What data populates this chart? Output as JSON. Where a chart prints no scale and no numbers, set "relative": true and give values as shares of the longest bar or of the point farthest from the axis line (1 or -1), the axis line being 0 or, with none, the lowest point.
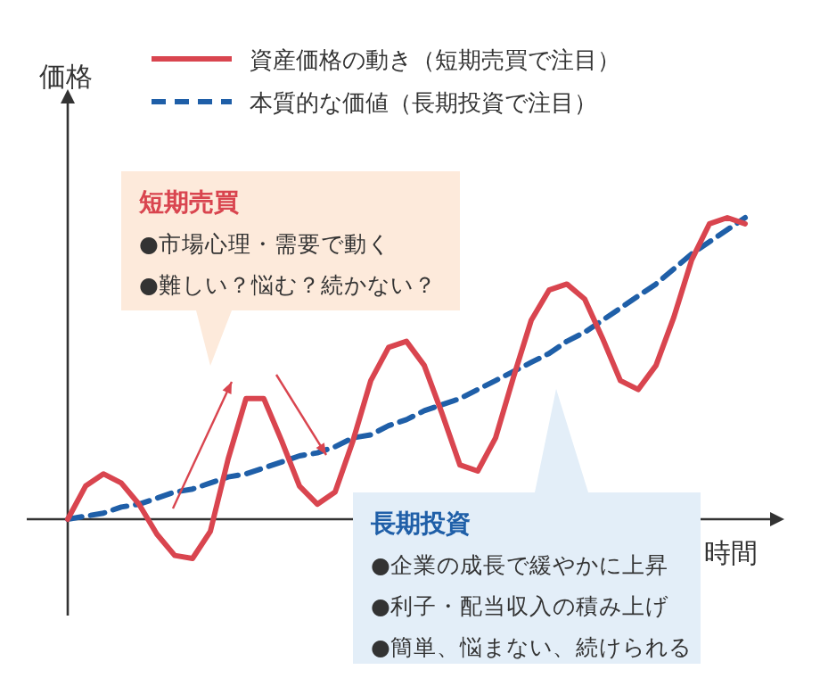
{
  "chart_data": {
    "type": "line",
    "relative": true,
    "xlabel": "時間",
    "ylabel": "価格",
    "legend": "top",
    "marker": "none",
    "categories": [
      null,
      null,
      null,
      null,
      null,
      null,
      null,
      null,
      null,
      null,
      null,
      null,
      null,
      null,
      null,
      null,
      null,
      null,
      null,
      null,
      null,
      null,
      null,
      null,
      null,
      null,
      null,
      null,
      null,
      null,
      null,
      null,
      null,
      null,
      null,
      null,
      null,
      null,
      null
    ],
    "series": [
      {
        "name": "資産価格の動き（短期売買で注目）",
        "color": "#d9454f",
        "line_style": "solid",
        "values": [
          0,
          0.11,
          0.15,
          0.12,
          0.05,
          -0.05,
          -0.12,
          -0.13,
          -0.04,
          0.2,
          0.4,
          0.4,
          0.26,
          0.11,
          0.05,
          0.09,
          0.26,
          0.46,
          0.57,
          0.59,
          0.51,
          0.35,
          0.18,
          0.16,
          0.27,
          0.47,
          0.66,
          0.76,
          0.78,
          0.73,
          0.6,
          0.46,
          0.43,
          0.51,
          0.67,
          0.86,
          0.98,
          1.0,
          0.98
        ]
      },
      {
        "name": "本質的な価値（長期投資で注目）",
        "color": "#1f5fa8",
        "line_style": "dashed",
        "values": [
          0,
          0.01,
          0.02,
          0.04,
          0.05,
          0.07,
          0.09,
          0.1,
          0.12,
          0.14,
          0.15,
          0.17,
          0.19,
          0.21,
          0.22,
          0.24,
          0.27,
          0.28,
          0.31,
          0.33,
          0.36,
          0.38,
          0.4,
          0.43,
          0.46,
          0.49,
          0.52,
          0.55,
          0.59,
          0.62,
          0.66,
          0.7,
          0.74,
          0.78,
          0.83,
          0.88,
          0.92,
          0.96,
          1.0
        ]
      }
    ],
    "annotations": [
      "短期売買",
      "●市場心理・需要で動く",
      "●難しい？悩む？続かない？",
      "長期投資",
      "●企業の成長で緩やかに上昇",
      "●利子・配当収入の積み上げ",
      "●簡単、悩まない、続けられる"
    ]
  }
}
